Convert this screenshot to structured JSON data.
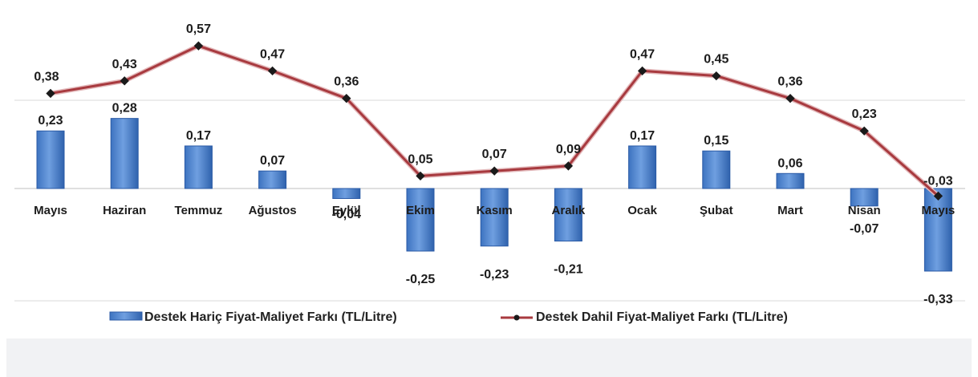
{
  "colors": {
    "bar_fill": "#4f86d0",
    "bar_edge": "#2a5aa6",
    "line": "#a83a3f",
    "marker": "#1a1a1a",
    "negative_label": "#c0272d",
    "positive_label": "#1c1c1c",
    "gridline": "#d9d9d9"
  },
  "chart_data": {
    "type": "bar",
    "categories": [
      "Mayıs",
      "Haziran",
      "Temmuz",
      "Ağustos",
      "Eylül",
      "Ekim",
      "Kasım",
      "Aralık",
      "Ocak",
      "Şubat",
      "Mart",
      "Nisan",
      "Mayıs"
    ],
    "series": [
      {
        "name": "Destek Hariç Fiyat-Maliyet Farkı (TL/Litre)",
        "type": "bar",
        "values": [
          0.23,
          0.28,
          0.17,
          0.07,
          -0.04,
          -0.25,
          -0.23,
          -0.21,
          0.17,
          0.15,
          0.06,
          -0.07,
          -0.33
        ],
        "labels": [
          "0,23",
          "0,28",
          "0,17",
          "0,07",
          "-0,04",
          "-0,25",
          "-0,23",
          "-0,21",
          "0,17",
          "0,15",
          "0,06",
          "-0,07",
          "-0,33"
        ]
      },
      {
        "name": "Destek Dahil Fiyat-Maliyet Farkı (TL/Litre)",
        "type": "line",
        "values": [
          0.38,
          0.43,
          0.57,
          0.47,
          0.36,
          0.05,
          0.07,
          0.09,
          0.47,
          0.45,
          0.36,
          0.23,
          -0.03
        ],
        "labels": [
          "0,38",
          "0,43",
          "0,57",
          "0,47",
          "0,36",
          "0,05",
          "0,07",
          "0,09",
          "0,47",
          "0,45",
          "0,36",
          "0,23",
          "-0,03"
        ]
      }
    ],
    "ylim": [
      -0.4,
      0.6
    ],
    "grid": true,
    "legend": "bottom"
  }
}
